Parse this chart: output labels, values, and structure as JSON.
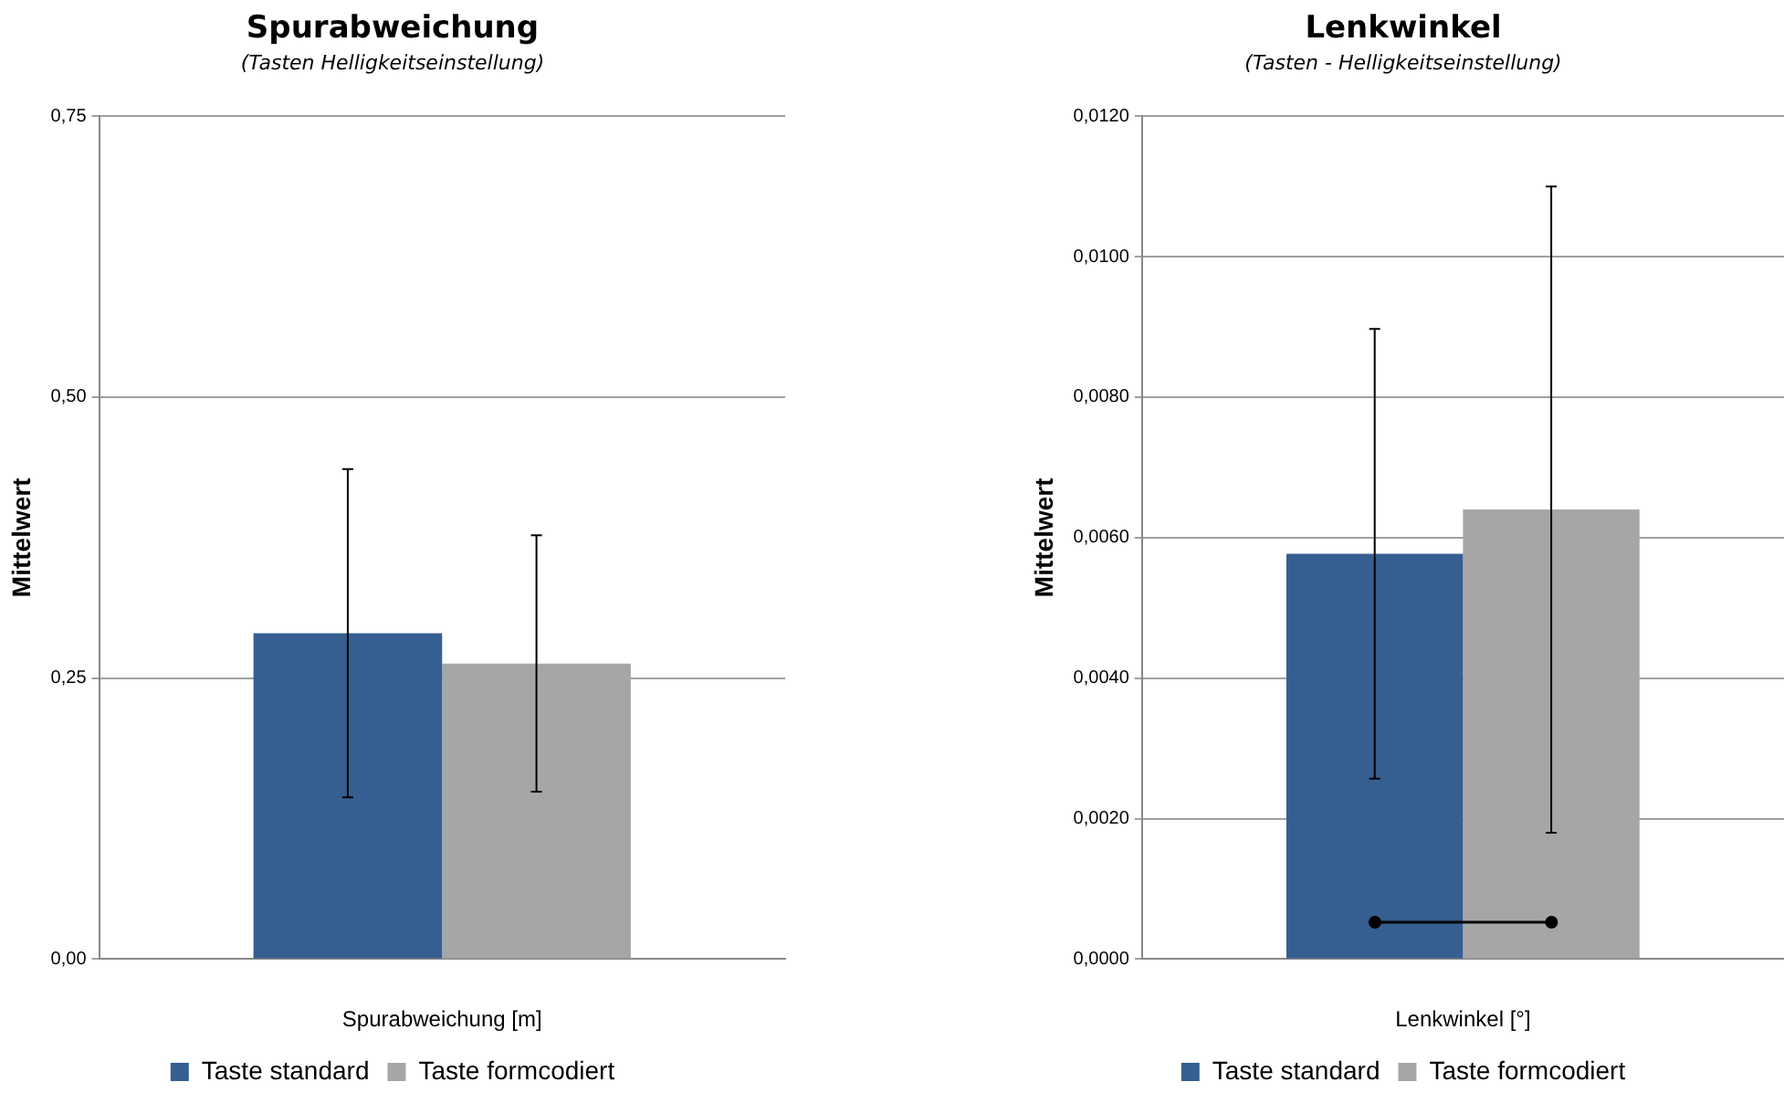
{
  "chart_data": [
    {
      "type": "bar",
      "title": "Spurabweichung",
      "subtitle": "(Tasten Helligkeitseinstellung)",
      "xlabel": "Spurabweichung [m]",
      "ylabel": "Mittelwert",
      "categories": [
        null
      ],
      "series": [
        {
          "name": "Taste standard",
          "color": "#365f91",
          "values": [
            0.29
          ],
          "errors": [
            0.146
          ]
        },
        {
          "name": "Taste formcodiert",
          "color": "#a6a6a6",
          "values": [
            0.263
          ],
          "errors": [
            0.114
          ]
        }
      ],
      "ylim": [
        0,
        0.75
      ],
      "yticks": [
        {
          "value": 0,
          "label": "0,00"
        },
        {
          "value": 0.25,
          "label": "0,25"
        },
        {
          "value": 0.5,
          "label": "0,50"
        },
        {
          "value": 0.75,
          "label": "0,75"
        }
      ],
      "grid": "y",
      "legend": "bottom"
    },
    {
      "type": "bar",
      "title": "Lenkwinkel",
      "subtitle": "(Tasten - Helligkeitseinstellung)",
      "xlabel": "Lenkwinkel [°]",
      "ylabel": "Mittelwert",
      "categories": [
        null
      ],
      "series": [
        {
          "name": "Taste standard",
          "color": "#365f91",
          "values": [
            0.00577
          ],
          "errors": [
            0.0032
          ]
        },
        {
          "name": "Taste formcodiert",
          "color": "#a6a6a6",
          "values": [
            0.0064
          ],
          "errors": [
            0.0046
          ]
        }
      ],
      "ylim": [
        0,
        0.012
      ],
      "yticks": [
        {
          "value": 0,
          "label": "0,0000"
        },
        {
          "value": 0.002,
          "label": "0,0020"
        },
        {
          "value": 0.004,
          "label": "0,0040"
        },
        {
          "value": 0.006,
          "label": "0,0060"
        },
        {
          "value": 0.008,
          "label": "0,0080"
        },
        {
          "value": 0.01,
          "label": "0,0100"
        },
        {
          "value": 0.012,
          "label": "0,0120"
        }
      ],
      "grid": "y",
      "legend": "bottom"
    }
  ]
}
